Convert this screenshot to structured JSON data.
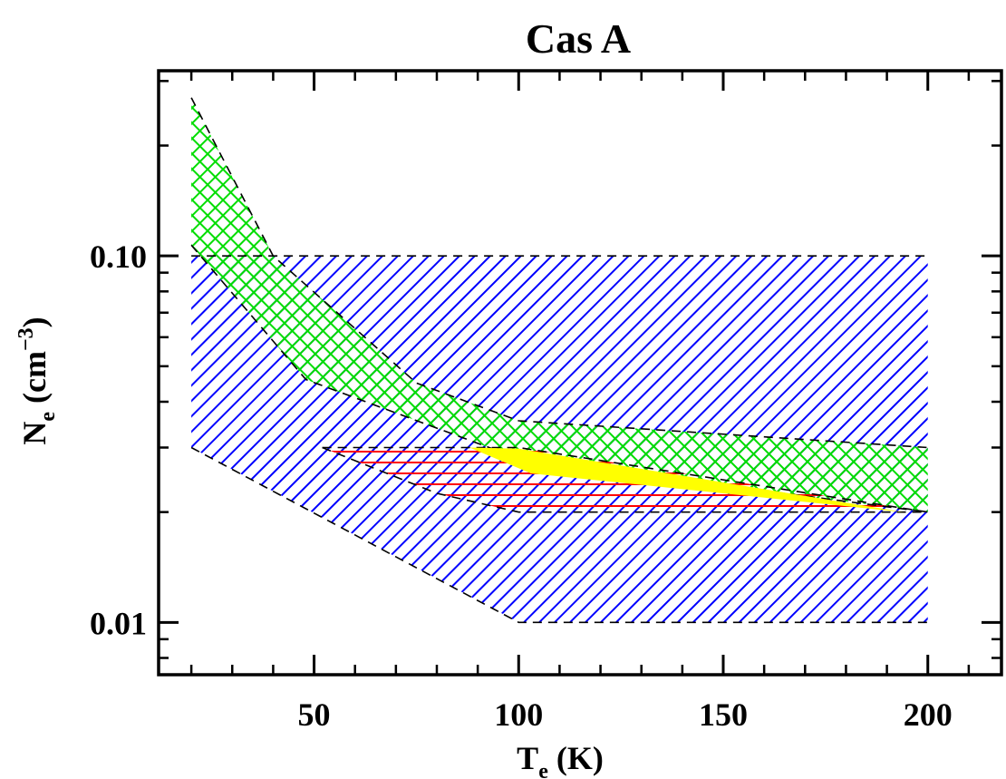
{
  "chart_data": {
    "type": "area",
    "title": "Cas A",
    "xlabel": {
      "main": "T",
      "sub": "e",
      "unit": " (K)"
    },
    "ylabel": {
      "main": "N",
      "sub": "e",
      "unit_pre": " (cm",
      "unit_exp": "−3",
      "unit_post": ")"
    },
    "xlim": [
      12,
      218
    ],
    "ylim": [
      0.0072,
      0.32
    ],
    "yscale": "log",
    "x_ticks": [
      {
        "value": 50,
        "label": "50"
      },
      {
        "value": 100,
        "label": "100"
      },
      {
        "value": 150,
        "label": "150"
      },
      {
        "value": 200,
        "label": "200"
      }
    ],
    "y_ticks": [
      {
        "value": 0.01,
        "label": "0.01"
      },
      {
        "value": 0.1,
        "label": "0.10"
      }
    ],
    "grid": false,
    "legend": "none",
    "regions": [
      {
        "color": "#0000ff",
        "hatch_angle": 45,
        "upper": [
          [
            20,
            0.1
          ],
          [
            200,
            0.1
          ]
        ],
        "lower": [
          [
            20,
            0.03
          ],
          [
            100,
            0.01
          ],
          [
            200,
            0.01
          ]
        ]
      },
      {
        "color": "#00dd00",
        "hatch_angle": 45,
        "upper": [
          [
            20,
            0.27
          ],
          [
            40,
            0.1
          ],
          [
            75,
            0.045
          ],
          [
            100,
            0.0355
          ],
          [
            200,
            0.03
          ]
        ],
        "lower": [
          [
            20,
            0.107
          ],
          [
            48,
            0.046
          ],
          [
            100,
            0.028
          ],
          [
            200,
            0.02
          ]
        ]
      },
      {
        "color": "#00dd00",
        "hatch_angle": -45,
        "upper": [
          [
            20,
            0.27
          ],
          [
            40,
            0.1
          ],
          [
            75,
            0.045
          ],
          [
            100,
            0.0355
          ],
          [
            200,
            0.03
          ]
        ],
        "lower": [
          [
            20,
            0.107
          ],
          [
            48,
            0.046
          ],
          [
            100,
            0.028
          ],
          [
            200,
            0.02
          ]
        ]
      },
      {
        "color": "#ff0000",
        "hatch_angle": 0,
        "upper": [
          [
            52,
            0.03
          ],
          [
            100,
            0.03
          ],
          [
            200,
            0.02
          ]
        ],
        "lower": [
          [
            52,
            0.03
          ],
          [
            80,
            0.0225
          ],
          [
            100,
            0.02
          ],
          [
            200,
            0.02
          ]
        ]
      }
    ],
    "intersection": {
      "color": "#ffff00",
      "polygon": [
        [
          88,
          0.03
        ],
        [
          100,
          0.0298
        ],
        [
          194,
          0.02
        ],
        [
          103,
          0.0255
        ]
      ]
    }
  }
}
